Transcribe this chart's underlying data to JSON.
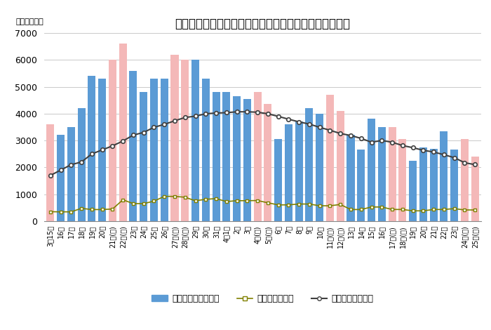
{
  "title": "《イタリア国内における新型コロナウイルスの感染者》",
  "title_jp": "【イタリア国内における新型コロナウイルスの感染者】",
  "unit_label": "（単位：人）",
  "ylim": [
    0,
    7000
  ],
  "yticks": [
    0,
    1000,
    2000,
    3000,
    4000,
    5000,
    6000,
    7000
  ],
  "labels": [
    "3月15日",
    "16日",
    "17日",
    "18日",
    "19日",
    "20日",
    "21日(土)",
    "22日(日)",
    "23日",
    "24日",
    "25日",
    "26日",
    "27日(土)",
    "28日(日)",
    "29日",
    "30日",
    "31日",
    "4月1日",
    "2日",
    "3日",
    "4日(土)",
    "5日(日)",
    "6日",
    "7日",
    "8日",
    "9日",
    "10日",
    "11日(土)",
    "12日(日)",
    "13日",
    "14日",
    "15日",
    "16日",
    "17日(土)",
    "18日(日)",
    "19日",
    "20日",
    "21日",
    "22日",
    "23日",
    "24日(土)",
    "25日(土)"
  ],
  "bar_values": [
    3600,
    3200,
    3500,
    4200,
    5400,
    5300,
    6000,
    6600,
    5600,
    4800,
    5300,
    5300,
    6200,
    6000,
    6000,
    5300,
    4800,
    4800,
    4650,
    4550,
    4800,
    4350,
    3050,
    3600,
    3700,
    4200,
    4000,
    4700,
    4100,
    3200,
    2650,
    3800,
    3500,
    3500,
    3050,
    2250,
    2750,
    2700,
    3350,
    2650,
    3050,
    2400
  ],
  "bar_colors_flag": [
    1,
    0,
    0,
    0,
    0,
    0,
    1,
    1,
    0,
    0,
    0,
    0,
    1,
    1,
    0,
    0,
    0,
    0,
    0,
    0,
    1,
    1,
    0,
    0,
    0,
    0,
    0,
    1,
    1,
    0,
    0,
    0,
    0,
    1,
    1,
    0,
    0,
    0,
    0,
    0,
    1,
    1
  ],
  "deaths_values": [
    350,
    345,
    345,
    475,
    430,
    430,
    450,
    793,
    651,
    651,
    743,
    920,
    919,
    889,
    756,
    812,
    837,
    727,
    760,
    760,
    766,
    681,
    604,
    604,
    636,
    636,
    570,
    570,
    619,
    431,
    431,
    525,
    525,
    433,
    433,
    382,
    382,
    433,
    433,
    464,
    415,
    415
  ],
  "icu_values": [
    1700,
    1900,
    2100,
    2200,
    2500,
    2650,
    2800,
    2980,
    3200,
    3300,
    3490,
    3600,
    3732,
    3856,
    3906,
    3994,
    4023,
    4035,
    4068,
    4068,
    4053,
    3994,
    3898,
    3792,
    3693,
    3612,
    3489,
    3381,
    3260,
    3186,
    3079,
    2936,
    3000,
    2936,
    2812,
    2733,
    2635,
    2573,
    2471,
    2362,
    2173,
    2102
  ],
  "bar_color_normal": "#5b9bd5",
  "bar_color_weekend": "#f4b8b8",
  "deaths_color": "#808000",
  "icu_color": "#404040",
  "legend_labels": [
    "陽性反応者（日別）",
    "死亡者（日別）",
    "集中治療室の患者"
  ],
  "title_fontsize": 12,
  "tick_fontsize": 7.0,
  "legend_fontsize": 9,
  "ytick_fontsize": 9
}
